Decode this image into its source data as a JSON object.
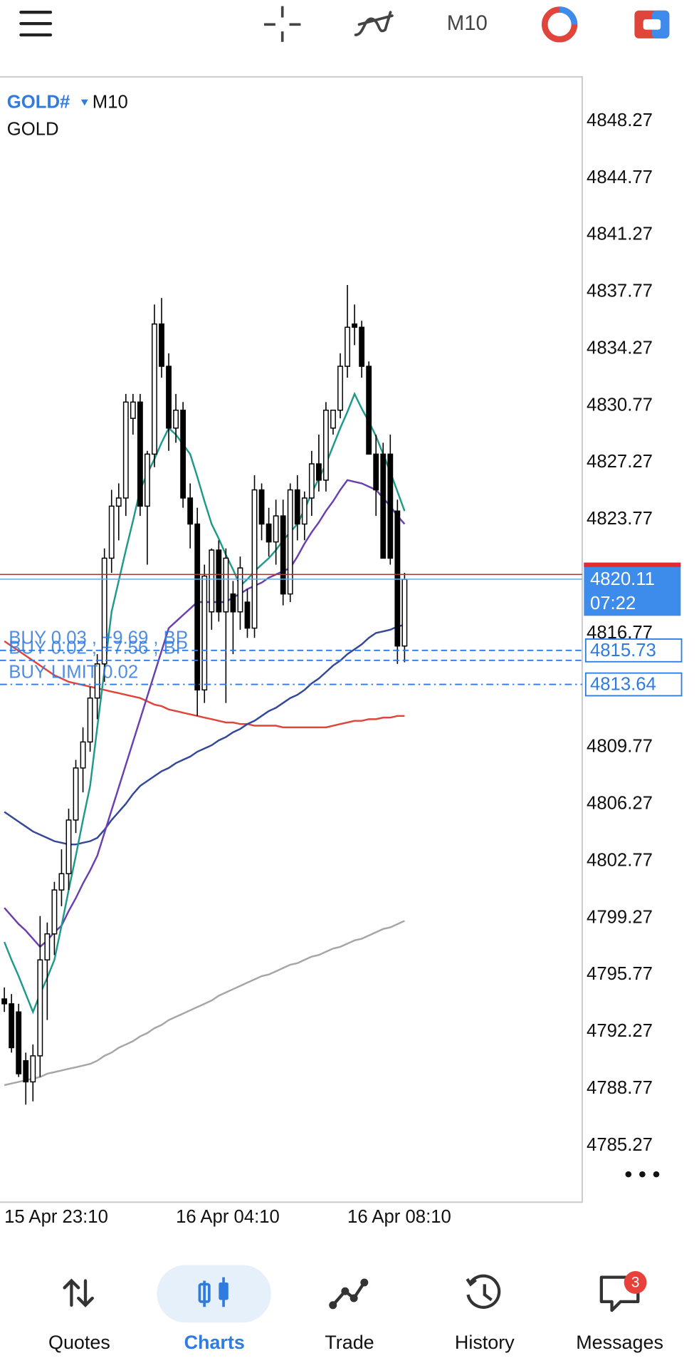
{
  "chart_data": {
    "type": "candlestick",
    "symbol": "GOLD#",
    "timeframe": "M10",
    "description": "GOLD",
    "categories": [
      "15 Apr 23:10",
      null,
      null,
      null,
      null,
      null,
      null,
      null,
      null,
      null,
      null,
      null,
      null,
      null,
      null,
      null,
      null,
      null,
      null,
      null,
      null,
      null,
      null,
      null,
      "16 Apr 04:10",
      null,
      null,
      null,
      null,
      null,
      null,
      null,
      null,
      null,
      null,
      null,
      null,
      null,
      null,
      null,
      null,
      null,
      null,
      null,
      null,
      null,
      null,
      null,
      "16 Apr 08:10",
      null,
      null,
      null,
      null,
      null,
      null,
      null,
      null
    ],
    "open": [
      4794.3,
      4794.0,
      4793.5,
      4790.5,
      4789.2,
      4790.8,
      4796.7,
      4798.3,
      4801.0,
      4802.0,
      4805.3,
      4808.5,
      4810.1,
      4812.8,
      4814.9,
      4821.4,
      4824.6,
      4825.1,
      4830.0,
      4831.0,
      4824.6,
      4827.8,
      4835.8,
      4833.2,
      4829.4,
      4830.5,
      4825.1,
      4823.5,
      4813.3,
      4818.1,
      4821.9,
      4818.1,
      4819.2,
      4818.1,
      4818.7,
      4817.1,
      4825.6,
      4823.5,
      4822.4,
      4824.0,
      4819.2,
      4825.6,
      4823.5,
      4825.1,
      4827.2,
      4826.2,
      4829.4,
      4830.5,
      4833.2,
      4835.8,
      4835.6,
      4833.2,
      4827.8,
      4827.8,
      4827.8,
      4824.3,
      4816.0
    ],
    "high": [
      4795.0,
      4794.6,
      4794.0,
      4791.0,
      4791.5,
      4799.4,
      4799.0,
      4801.5,
      4803.5,
      4806.0,
      4809.0,
      4811.0,
      4813.5,
      4815.5,
      4822.0,
      4825.6,
      4826.0,
      4831.5,
      4831.5,
      4831.5,
      4828.0,
      4837.0,
      4837.4,
      4834.0,
      4831.5,
      4831.0,
      4826.0,
      4824.5,
      4821.0,
      4822.0,
      4822.5,
      4822.0,
      4820.0,
      4821.5,
      4819.5,
      4826.5,
      4826.0,
      4824.5,
      4825.0,
      4825.0,
      4826.0,
      4826.5,
      4825.5,
      4828.0,
      4829.0,
      4831.0,
      4830.5,
      4834.0,
      4838.2,
      4837.0,
      4836.0,
      4833.5,
      4829.0,
      4828.5,
      4829.0,
      4825.0,
      4820.5
    ],
    "low": [
      4793.5,
      4791.0,
      4789.5,
      4787.8,
      4788.0,
      4789.5,
      4793.0,
      4797.0,
      4800.0,
      4801.0,
      4804.5,
      4807.0,
      4809.5,
      4811.5,
      4813.8,
      4820.5,
      4822.5,
      4824.0,
      4829.0,
      4824.0,
      4821.0,
      4827.0,
      4832.5,
      4828.0,
      4828.5,
      4824.5,
      4822.0,
      4811.7,
      4812.5,
      4817.0,
      4817.5,
      4812.5,
      4815.5,
      4817.0,
      4816.5,
      4816.5,
      4822.5,
      4821.5,
      4821.0,
      4818.5,
      4818.7,
      4822.5,
      4822.5,
      4824.0,
      4825.5,
      4825.5,
      4829.0,
      4830.0,
      4832.5,
      4834.5,
      4832.5,
      4827.8,
      4824.0,
      4821.4,
      4821.0,
      4814.9,
      4815.0
    ],
    "close": [
      4794.0,
      4791.3,
      4789.7,
      4789.2,
      4790.8,
      4796.7,
      4798.3,
      4801.0,
      4802.0,
      4805.3,
      4808.5,
      4810.1,
      4812.8,
      4814.9,
      4821.4,
      4824.6,
      4825.1,
      4831.0,
      4831.0,
      4824.6,
      4827.8,
      4835.8,
      4833.2,
      4829.4,
      4830.5,
      4825.1,
      4823.5,
      4813.3,
      4820.3,
      4821.9,
      4818.1,
      4821.4,
      4818.1,
      4820.8,
      4817.1,
      4825.6,
      4823.5,
      4822.4,
      4824.0,
      4819.2,
      4825.6,
      4823.5,
      4825.1,
      4827.2,
      4826.2,
      4830.5,
      4830.5,
      4833.2,
      4835.6,
      4835.6,
      4833.2,
      4827.8,
      4825.6,
      4821.4,
      4821.4,
      4816.0,
      4820.1
    ],
    "up_color": "#ffffff",
    "down_color": "#000000",
    "moving_averages": [
      {
        "color": "#a6a6a6",
        "values": [
          4789.0,
          4789.1,
          4789.2,
          4789.3,
          4789.4,
          4789.5,
          4789.7,
          4789.8,
          4789.9,
          4790.0,
          4790.1,
          4790.2,
          4790.3,
          4790.5,
          4790.8,
          4791.0,
          4791.3,
          4791.5,
          4791.7,
          4792.0,
          4792.2,
          4792.5,
          4792.7,
          4793.0,
          4793.2,
          4793.4,
          4793.6,
          4793.8,
          4794.0,
          4794.2,
          4794.5,
          4794.7,
          4794.9,
          4795.1,
          4795.3,
          4795.5,
          4795.7,
          4795.8,
          4796.0,
          4796.2,
          4796.4,
          4796.5,
          4796.7,
          4796.9,
          4797.0,
          4797.2,
          4797.4,
          4797.5,
          4797.7,
          4797.9,
          4798.0,
          4798.2,
          4798.4,
          4798.6,
          4798.7,
          4798.9,
          4799.1
        ]
      },
      {
        "color": "#e0443a",
        "values": [
          4816.3,
          4816.0,
          4815.7,
          4815.4,
          4815.1,
          4814.8,
          4814.5,
          4814.2,
          4814.0,
          4813.8,
          4813.7,
          4813.6,
          4813.5,
          4813.4,
          4813.3,
          4813.2,
          4813.1,
          4813.0,
          4812.9,
          4812.8,
          4812.6,
          4812.4,
          4812.3,
          4812.1,
          4812.0,
          4811.9,
          4811.8,
          4811.7,
          4811.6,
          4811.5,
          4811.4,
          4811.3,
          4811.3,
          4811.2,
          4811.2,
          4811.1,
          4811.1,
          4811.1,
          4811.1,
          4811.0,
          4811.0,
          4811.0,
          4811.0,
          4811.0,
          4811.0,
          4811.0,
          4811.1,
          4811.2,
          4811.3,
          4811.4,
          4811.4,
          4811.5,
          4811.5,
          4811.6,
          4811.6,
          4811.7,
          4811.7
        ]
      },
      {
        "color": "#34489a",
        "values": [
          4805.8,
          4805.5,
          4805.2,
          4804.9,
          4804.6,
          4804.4,
          4804.2,
          4804.0,
          4803.9,
          4803.8,
          4803.8,
          4803.9,
          4804.0,
          4804.2,
          4804.7,
          4805.3,
          4805.8,
          4806.3,
          4806.9,
          4807.4,
          4807.7,
          4808.0,
          4808.3,
          4808.5,
          4808.8,
          4809.0,
          4809.2,
          4809.5,
          4809.7,
          4809.9,
          4810.2,
          4810.4,
          4810.7,
          4810.9,
          4811.2,
          4811.4,
          4811.7,
          4812.0,
          4812.2,
          4812.5,
          4812.8,
          4813.0,
          4813.3,
          4813.7,
          4814.0,
          4814.4,
          4814.8,
          4815.1,
          4815.5,
          4815.8,
          4816.1,
          4816.5,
          4816.8,
          4816.9,
          4817.0,
          4817.2,
          4817.3
        ]
      },
      {
        "color": "#6a3fb0",
        "values": [
          4799.9,
          4799.4,
          4798.9,
          4798.5,
          4798.0,
          4797.5,
          4797.9,
          4798.4,
          4798.8,
          4799.7,
          4800.5,
          4801.4,
          4802.2,
          4803.1,
          4804.5,
          4805.9,
          4807.3,
          4808.7,
          4810.1,
          4811.5,
          4812.9,
          4814.3,
          4815.7,
          4817.1,
          4817.5,
          4817.9,
          4818.3,
          4818.7,
          4818.7,
          4818.7,
          4818.7,
          4818.7,
          4819.0,
          4819.2,
          4819.5,
          4819.7,
          4819.9,
          4820.2,
          4820.4,
          4820.6,
          4820.8,
          4821.5,
          4822.3,
          4823.0,
          4823.6,
          4824.3,
          4824.9,
          4825.6,
          4826.2,
          4826.1,
          4826.0,
          4825.8,
          4825.6,
          4825.1,
          4824.6,
          4824.0,
          4823.5
        ]
      },
      {
        "color": "#1f9a8a",
        "values": [
          4797.8,
          4796.7,
          4795.7,
          4794.6,
          4793.5,
          4794.6,
          4795.6,
          4796.7,
          4798.8,
          4801.0,
          4803.1,
          4805.3,
          4807.4,
          4811.0,
          4814.5,
          4818.1,
          4820.0,
          4821.9,
          4823.7,
          4825.6,
          4826.6,
          4827.5,
          4828.5,
          4829.4,
          4829.0,
          4828.4,
          4827.8,
          4826.4,
          4824.9,
          4823.5,
          4822.6,
          4821.6,
          4820.7,
          4819.7,
          4820.1,
          4820.6,
          4821.0,
          4821.4,
          4821.9,
          4822.5,
          4823.0,
          4823.5,
          4824.4,
          4825.4,
          4826.3,
          4827.2,
          4828.3,
          4829.4,
          4830.4,
          4831.5,
          4830.6,
          4829.8,
          4828.9,
          4827.8,
          4826.7,
          4825.5,
          4824.3
        ]
      }
    ],
    "ylim": [
      4781.8,
      4851.0
    ],
    "yticks": [
      4848.27,
      4844.77,
      4841.27,
      4837.77,
      4834.27,
      4830.77,
      4827.27,
      4823.77,
      4816.77,
      4809.77,
      4806.27,
      4802.77,
      4799.27,
      4795.77,
      4792.27,
      4788.77,
      4785.27
    ],
    "bid": 4820.11,
    "ask": 4820.4,
    "bid_color": "#6fa8dc",
    "ask_color": "#a33a3a",
    "badge_color": "#3d8bea",
    "timer": "07:22",
    "order_color": "#2f7be0",
    "orders": [
      {
        "label": "BUY 0.03 , +9.69 , BP",
        "price": 4815.73,
        "style": "dashed",
        "badge": true
      },
      {
        "label": "BUY 0.02 , +7.56 , BP",
        "price": 4815.12,
        "style": "dashed",
        "badge": false
      },
      {
        "label": "BUY LIMIT 0.02",
        "price": 4813.64,
        "style": "dashdot",
        "badge": true
      }
    ]
  },
  "nav": {
    "items": [
      "Quotes",
      "Charts",
      "Trade",
      "History",
      "Messages"
    ],
    "active": 1,
    "messages_badge": 3
  }
}
